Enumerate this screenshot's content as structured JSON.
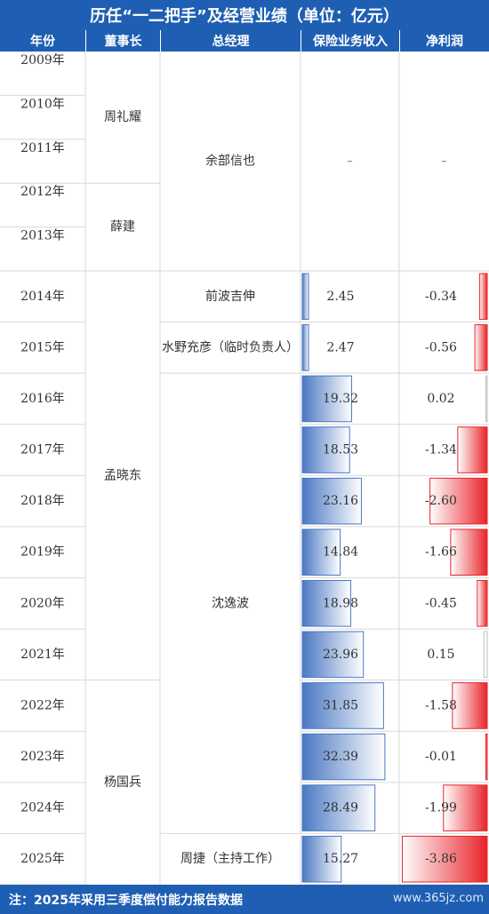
{
  "banner": {
    "title": "历任“一二把手”及经营业绩（单位：亿元）"
  },
  "header": {
    "year": "年份",
    "chairman": "董事长",
    "gm": "总经理",
    "revenue": "保险业务收入",
    "profit": "净利润"
  },
  "years": [
    "2009年",
    "2010年",
    "2011年",
    "2012年",
    "2013年",
    "2014年",
    "2015年",
    "2016年",
    "2017年",
    "2018年",
    "2019年",
    "2020年",
    "2021年",
    "2022年",
    "2023年",
    "2024年",
    "2025年"
  ],
  "chairmen": [
    {
      "name": "周礼耀"
    },
    {
      "name": "薛建"
    },
    {
      "name": "孟晓东"
    },
    {
      "name": "杨国兵"
    }
  ],
  "gms": [
    {
      "name": "余部信也"
    },
    {
      "name": "前波吉伸"
    },
    {
      "name": "水野充彦（临时负责人）"
    },
    {
      "name": "沈逸波"
    },
    {
      "name": "周捷（主持工作）"
    }
  ],
  "early_dash": {
    "revenue": "–",
    "profit": "–"
  },
  "chart_data": {
    "type": "table",
    "title": "历任“一二把手”及经营业绩（单位：亿元）",
    "categories": [
      "2014年",
      "2015年",
      "2016年",
      "2017年",
      "2018年",
      "2019年",
      "2020年",
      "2021年",
      "2022年",
      "2023年",
      "2024年",
      "2025年"
    ],
    "series": [
      {
        "name": "保险业务收入",
        "values": [
          2.45,
          2.47,
          19.32,
          18.53,
          23.16,
          14.84,
          18.98,
          23.96,
          31.85,
          32.39,
          28.49,
          15.27
        ],
        "labels": [
          "2.45",
          "2.47",
          "19.32",
          "18.53",
          "23.16",
          "14.84",
          "18.98",
          "23.96",
          "31.85",
          "32.39",
          "28.49",
          "15.27"
        ]
      },
      {
        "name": "净利润",
        "values": [
          -0.34,
          -0.56,
          0.02,
          -1.34,
          -2.6,
          -1.66,
          -0.45,
          0.15,
          -1.58,
          -0.01,
          -1.99,
          -3.86
        ],
        "labels": [
          "-0.34",
          "-0.56",
          "0.02",
          "-1.34",
          "-2.60",
          "-1.66",
          "-0.45",
          "0.15",
          "-1.58",
          "-0.01",
          "-1.99",
          "-3.86"
        ]
      }
    ],
    "colors": {
      "revenue_bar": "#4a78c2",
      "profit_bar": "#e8242a",
      "header": "#1f5fb3"
    }
  },
  "footer": {
    "note": "注：2025年采用三季度偿付能力报告数据",
    "watermark": "www.365jz.com"
  }
}
